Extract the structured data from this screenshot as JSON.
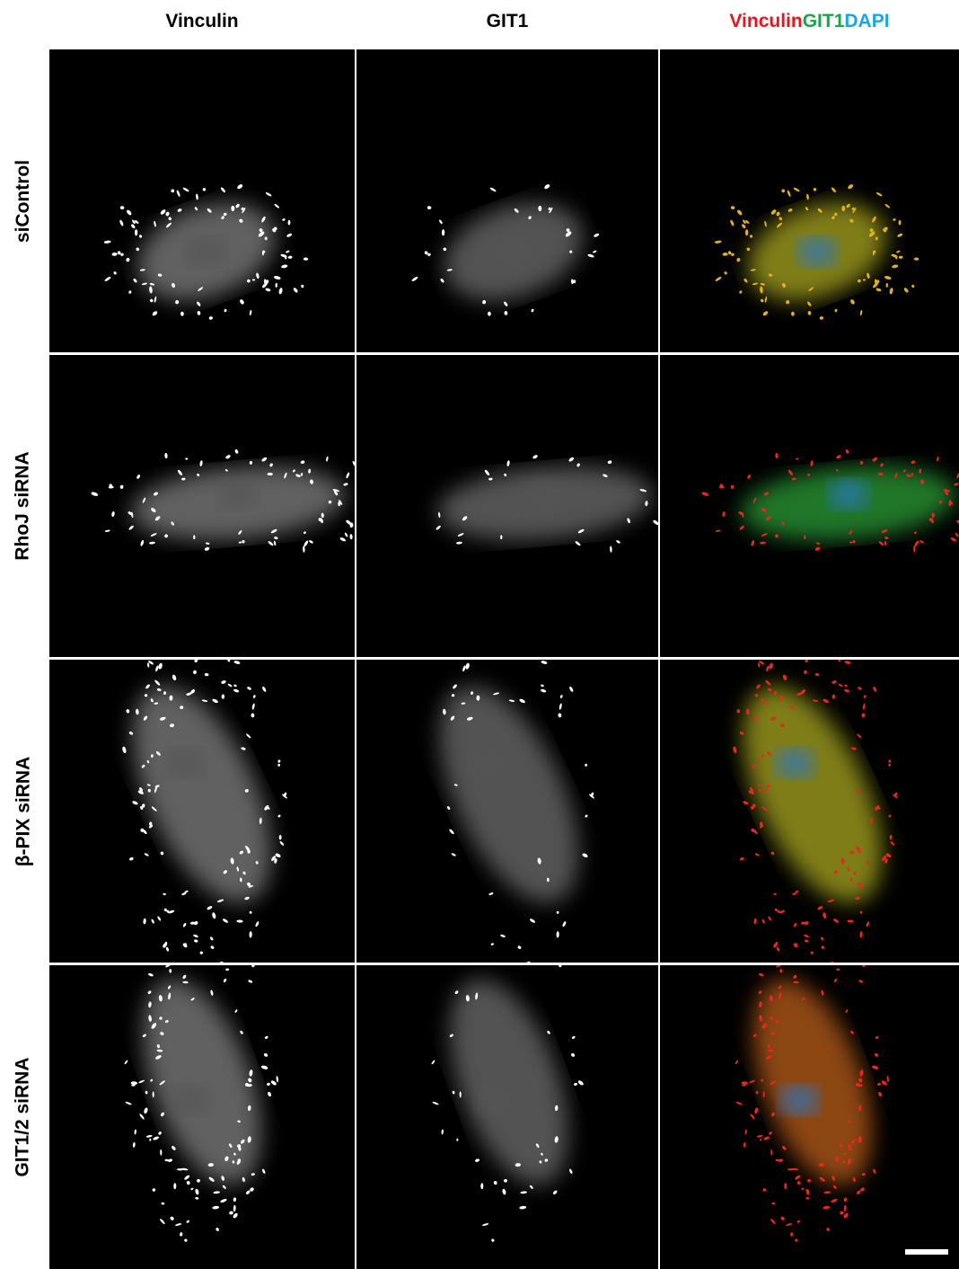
{
  "column_headers": [
    "Vinculin",
    "GIT1"
  ],
  "merge_header": [
    "Vinculin",
    "GIT1",
    "DAPI"
  ],
  "row_labels": [
    "siControl",
    "RhoJ siRNA",
    "β-PIX siRNA",
    "GIT1/2 siRNA"
  ]
}
